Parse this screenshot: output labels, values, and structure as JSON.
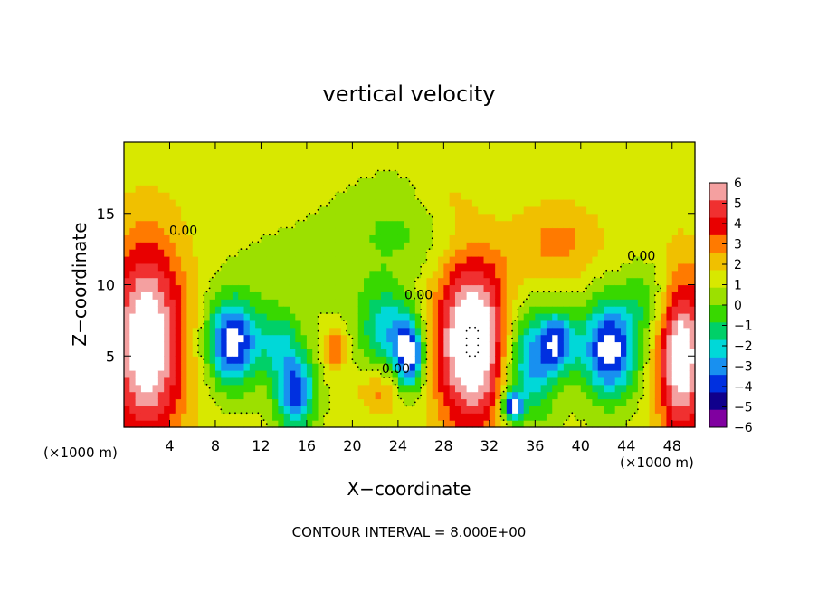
{
  "chart_data": {
    "type": "heatmap",
    "title": "vertical velocity",
    "xlabel": "X−coordinate",
    "ylabel": "Z−coordinate",
    "x_unit_left": "(×1000 m)",
    "x_unit_right": "(×1000 m)",
    "footer": "CONTOUR INTERVAL = 8.000E+00",
    "xlim": [
      0,
      50
    ],
    "ylim": [
      0,
      20
    ],
    "x_ticks": [
      4,
      8,
      12,
      16,
      20,
      24,
      28,
      32,
      36,
      40,
      44,
      48
    ],
    "y_ticks": [
      5,
      10,
      15
    ],
    "contour_labels": [
      {
        "text": "0.00",
        "x": 5.2,
        "y": 13.5
      },
      {
        "text": "0.00",
        "x": 25.8,
        "y": 9.0
      },
      {
        "text": "0.00",
        "x": 23.8,
        "y": 3.8
      },
      {
        "text": "0.00",
        "x": 45.3,
        "y": 11.7
      }
    ],
    "colorbar": {
      "ticks": [
        6,
        5,
        4,
        3,
        2,
        1,
        0,
        -1,
        -2,
        -3,
        -4,
        -5,
        -6
      ],
      "colors": [
        "#f4a0a0",
        "#f03030",
        "#e80000",
        "#ff7a00",
        "#f0c000",
        "#d8e800",
        "#9ce000",
        "#38d800",
        "#00d068",
        "#00d8d8",
        "#1890f0",
        "#0030e0",
        "#10008c",
        "#8000a0"
      ]
    },
    "features": [
      {
        "x": 2.0,
        "z": 6.0,
        "rx": 3.5,
        "rz": 7.5,
        "w": 7
      },
      {
        "x": 9.5,
        "z": 6.0,
        "rx": 2.3,
        "rz": 3.2,
        "w": -7
      },
      {
        "x": 15.0,
        "z": 2.5,
        "rx": 1.8,
        "rz": 2.8,
        "w": -6
      },
      {
        "x": 13.5,
        "z": 6.0,
        "rx": 2.0,
        "rz": 2.5,
        "w": -3
      },
      {
        "x": 18.5,
        "z": 5.5,
        "rx": 1.0,
        "rz": 1.5,
        "w": 3
      },
      {
        "x": 22.5,
        "z": 2.5,
        "rx": 2.0,
        "rz": 1.5,
        "w": 2
      },
      {
        "x": 23.0,
        "z": 7.0,
        "rx": 2.5,
        "rz": 3.0,
        "w": -4
      },
      {
        "x": 25.0,
        "z": 5.0,
        "rx": 1.3,
        "rz": 2.5,
        "w": -7
      },
      {
        "x": 30.5,
        "z": 6.0,
        "rx": 3.3,
        "rz": 6.2,
        "w": 8
      },
      {
        "x": 35.5,
        "z": 4.5,
        "rx": 2.5,
        "rz": 4.0,
        "w": -5
      },
      {
        "x": 34.0,
        "z": 1.5,
        "rx": 0.9,
        "rz": 1.0,
        "w": -7
      },
      {
        "x": 38.0,
        "z": 6.0,
        "rx": 1.6,
        "rz": 2.2,
        "w": -5
      },
      {
        "x": 42.5,
        "z": 5.5,
        "rx": 2.6,
        "rz": 3.5,
        "w": -7
      },
      {
        "x": 48.8,
        "z": 5.0,
        "rx": 2.2,
        "rz": 6.0,
        "w": 7
      },
      {
        "x": 38.0,
        "z": 13.0,
        "rx": 4.0,
        "rz": 3.0,
        "w": 2
      },
      {
        "x": 24.5,
        "z": 14.0,
        "rx": 6.0,
        "rz": 3.5,
        "w": -1.5
      },
      {
        "x": 16.0,
        "z": 11.0,
        "rx": 6.0,
        "rz": 3.0,
        "w": -1.0
      },
      {
        "x": 46.0,
        "z": 9.0,
        "rx": 2.5,
        "rz": 2.5,
        "w": -2
      },
      {
        "x": 28.0,
        "z": 16.0,
        "rx": 3.0,
        "rz": 2.5,
        "w": 1.0
      }
    ]
  }
}
